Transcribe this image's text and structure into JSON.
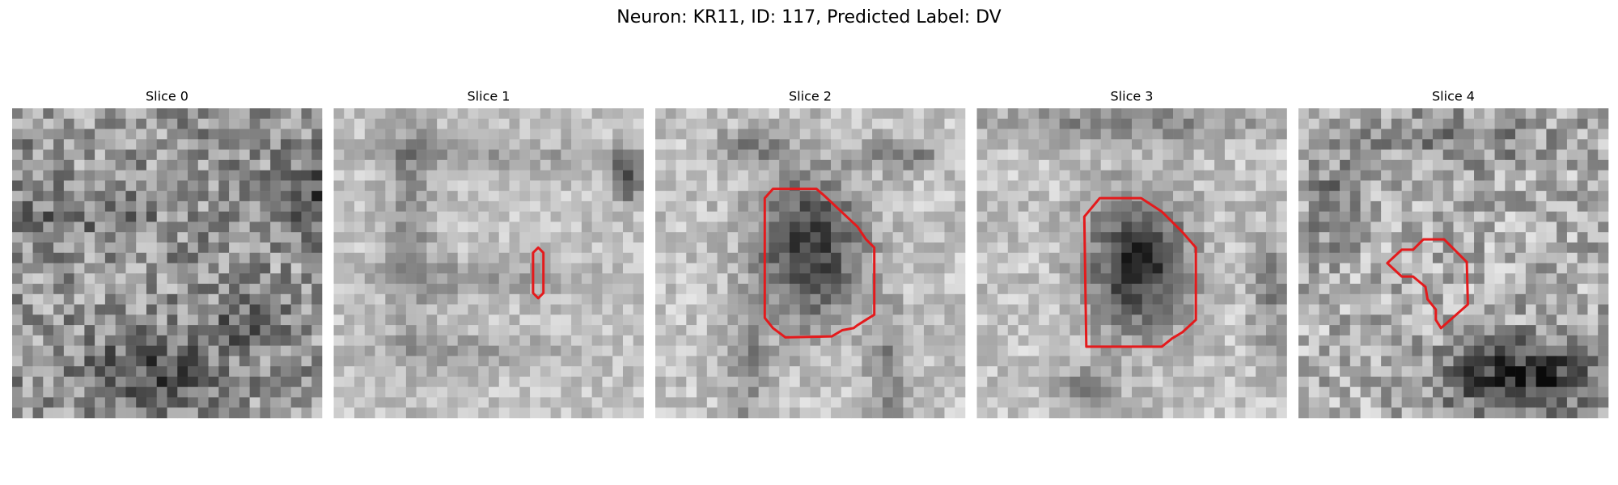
{
  "title": "Neuron: KR11, ID: 117, Predicted Label: DV",
  "panels": [
    {
      "title": "Slice 0"
    },
    {
      "title": "Slice 1"
    },
    {
      "title": "Slice 2"
    },
    {
      "title": "Slice 3"
    },
    {
      "title": "Slice 4"
    }
  ]
}
